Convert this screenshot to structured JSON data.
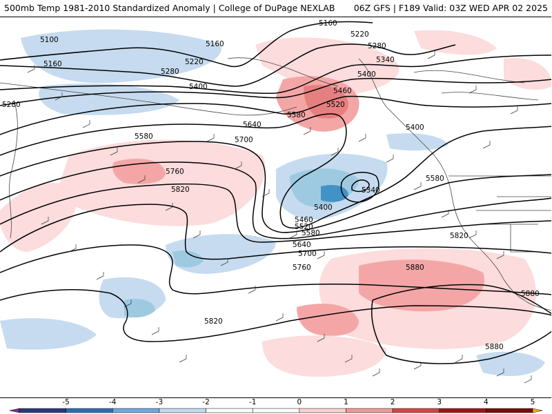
{
  "header": {
    "title": "500mb Temp 1981-2010 Standardized Anomaly | College of DuPage NEXLAB",
    "valid": "06Z GFS | F189 Valid: 03Z WED APR 02 2025"
  },
  "map": {
    "contour_labels": [
      "5160",
      "5220",
      "5280",
      "5340",
      "5100",
      "5160",
      "5160",
      "5220",
      "5280",
      "5400",
      "5400",
      "5460",
      "5520",
      "5280",
      "5580",
      "5640",
      "5580",
      "5700",
      "5400",
      "5760",
      "5820",
      "5340",
      "5400",
      "5460",
      "5520",
      "5580",
      "5640",
      "5700",
      "5760",
      "5580",
      "5820",
      "5880",
      "5880",
      "5820",
      "5880"
    ],
    "anomaly_colors": {
      "neg_light": "#c6dbef",
      "neg_mid": "#9ecae1",
      "neg_strong": "#4292c6",
      "pos_light": "#fcdcdc",
      "pos_mid": "#f4a6a6",
      "pos_strong": "#e07070"
    },
    "contour_color": "#000000"
  },
  "colorbar": {
    "tick_labels": [
      "-5",
      "-4",
      "-3",
      "-2",
      "-1",
      "0",
      "1",
      "2",
      "3",
      "4",
      "5"
    ],
    "colors": [
      "#7b3294",
      "#2b3a78",
      "#2c6fba",
      "#74a9dc",
      "#c6dbef",
      "#ffffff",
      "#ffffff",
      "#fbd3d3",
      "#f29a9a",
      "#d64545",
      "#a11515",
      "#7a0c0c",
      "#f2b31a"
    ]
  }
}
